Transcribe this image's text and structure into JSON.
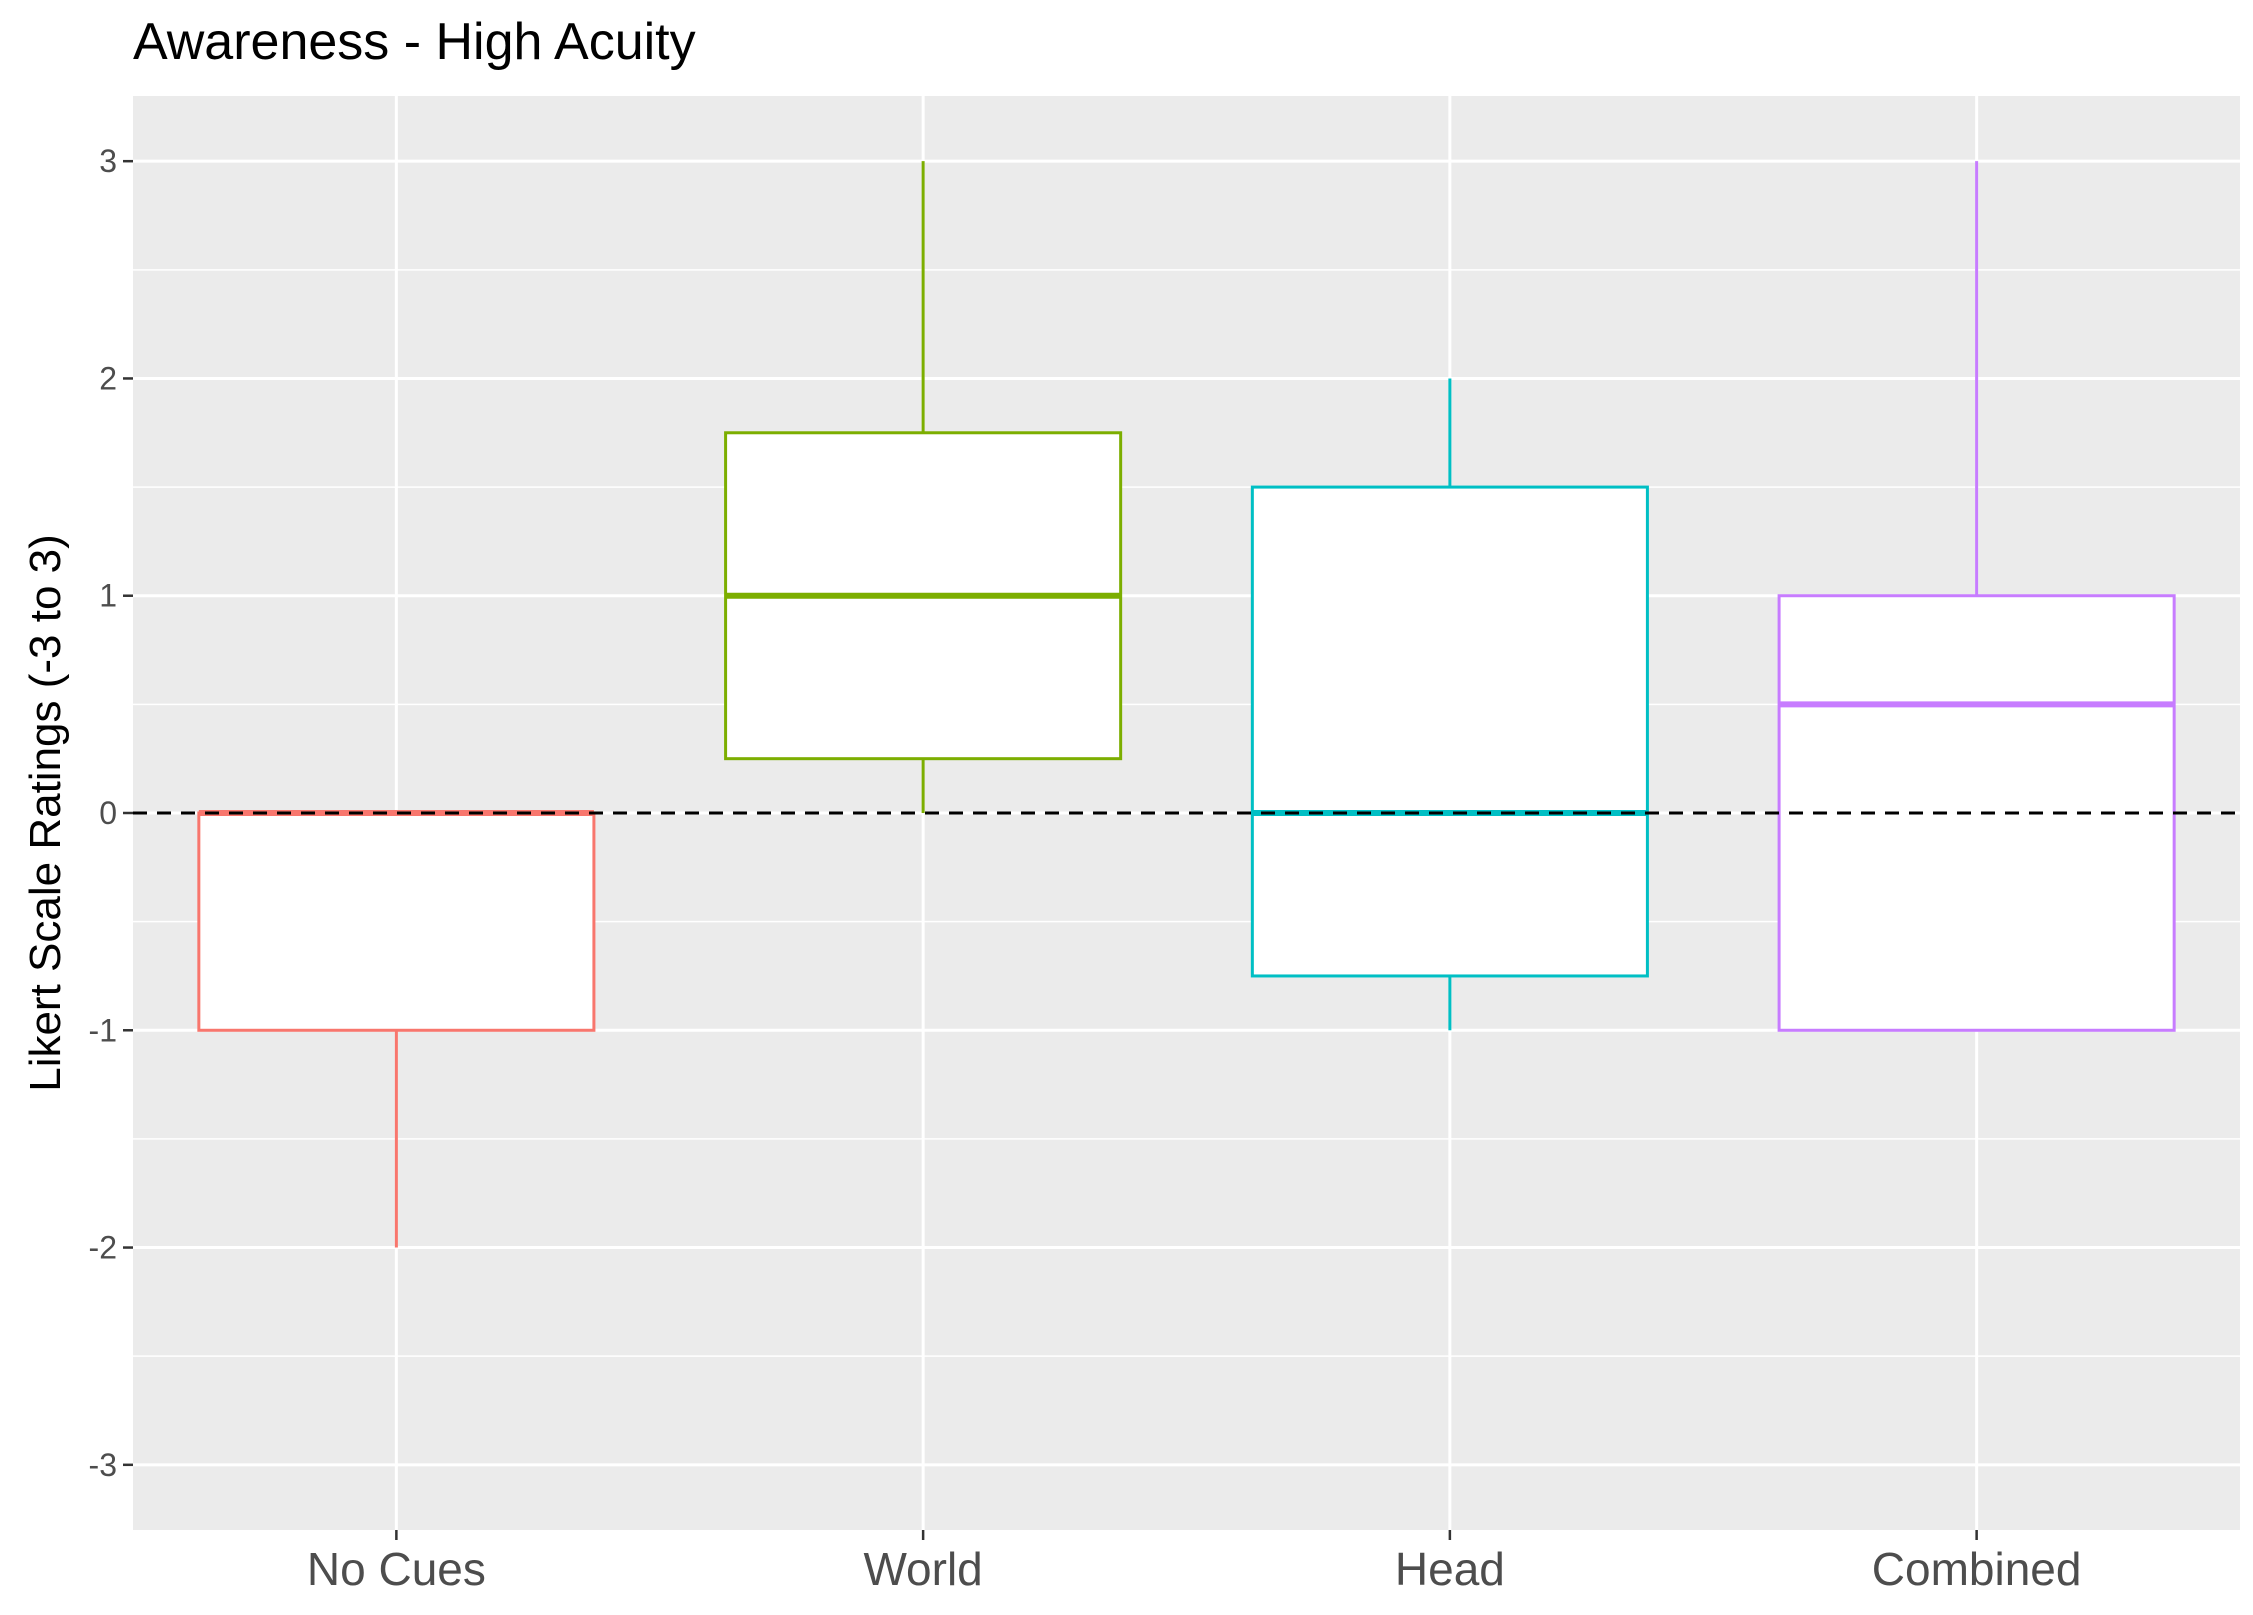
{
  "chart_data": {
    "type": "boxplot",
    "title": "Awareness - High Acuity",
    "xlabel": "",
    "ylabel": "Likert Scale Ratings (-3 to 3)",
    "ylim": [
      -3.3,
      3.3
    ],
    "yticks": [
      -3,
      -2,
      -1,
      0,
      1,
      2,
      3
    ],
    "ytick_labels": [
      "-3",
      "-2",
      "-1",
      "0",
      "1",
      "2",
      "3"
    ],
    "categories": [
      "No Cues",
      "World",
      "Head",
      "Combined"
    ],
    "boxes": [
      {
        "category": "No Cues",
        "whisker_low": -2,
        "q1": -1,
        "median": 0,
        "q3": 0,
        "whisker_high": 0,
        "color": "#F8766D"
      },
      {
        "category": "World",
        "whisker_low": 0,
        "q1": 0.25,
        "median": 1,
        "q3": 1.75,
        "whisker_high": 3,
        "color": "#7CAE00"
      },
      {
        "category": "Head",
        "whisker_low": -1,
        "q1": -0.75,
        "median": 0,
        "q3": 1.5,
        "whisker_high": 2,
        "color": "#00BFC4"
      },
      {
        "category": "Combined",
        "whisker_low": -1,
        "q1": -1,
        "median": 0.5,
        "q3": 1,
        "whisker_high": 3,
        "color": "#C77CFF"
      }
    ],
    "reference_line": {
      "y": 0,
      "style": "dashed",
      "color": "#000000"
    },
    "grid": true,
    "legend": "none",
    "panel_background": "#EBEBEB",
    "gridline_color": "#FFFFFF"
  }
}
